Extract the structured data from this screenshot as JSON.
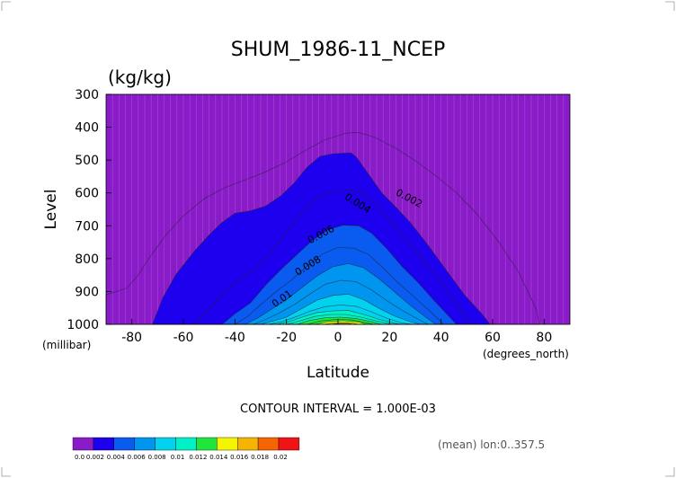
{
  "chart_data": {
    "type": "heatmap",
    "subtype": "filled-contour",
    "title": "SHUM_1986-11_NCEP",
    "units": "(kg/kg)",
    "ylabel": "Level",
    "yunit": "(millibar)",
    "xlabel": "Latitude",
    "xunit": "(degrees_north)",
    "xlim": [
      -90,
      90
    ],
    "ylim": [
      300,
      1000
    ],
    "y_reversed": true,
    "x_ticks": [
      -80,
      -60,
      -40,
      -20,
      0,
      20,
      40,
      60,
      80
    ],
    "y_ticks": [
      300,
      400,
      500,
      600,
      700,
      800,
      900,
      1000
    ],
    "contour_interval_text": "CONTOUR INTERVAL = 1.000E-03",
    "footer_note": "(mean) lon:0..357.5",
    "contour_labels": [
      {
        "text": "0.002",
        "lat": 27,
        "level": 625
      },
      {
        "text": "0.004",
        "lat": 7,
        "level": 640
      },
      {
        "text": "0.006",
        "lat": -6,
        "level": 735
      },
      {
        "text": "0.008",
        "lat": -11,
        "level": 830
      },
      {
        "text": "0.01",
        "lat": -21,
        "level": 930
      }
    ],
    "colorbar": {
      "labels": [
        "0.0",
        "0.002",
        "0.004",
        "0.006",
        "0.008",
        "0.01",
        "0.012",
        "0.014",
        "0.016",
        "0.018",
        "0.02"
      ],
      "colors": [
        "#8a1bc8",
        "#1c00ee",
        "#0a5bf0",
        "#0096f0",
        "#00d2f0",
        "#00f0c8",
        "#1ee63c",
        "#f5f500",
        "#f5b400",
        "#f56400",
        "#f01414"
      ]
    },
    "regions": [
      {
        "min": 0.001,
        "boundary": [
          [
            -90,
            910
          ],
          [
            -86,
            900
          ],
          [
            -82,
            890
          ],
          [
            -78,
            855
          ],
          [
            -73,
            795
          ],
          [
            -67,
            730
          ],
          [
            -60,
            670
          ],
          [
            -52,
            618
          ],
          [
            -44,
            584
          ],
          [
            -36,
            560
          ],
          [
            -28,
            536
          ],
          [
            -20,
            505
          ],
          [
            -12,
            468
          ],
          [
            -5,
            438
          ],
          [
            3,
            418
          ],
          [
            8,
            416
          ],
          [
            14,
            430
          ],
          [
            22,
            462
          ],
          [
            30,
            502
          ],
          [
            38,
            548
          ],
          [
            46,
            600
          ],
          [
            54,
            665
          ],
          [
            62,
            745
          ],
          [
            70,
            840
          ],
          [
            77,
            955
          ],
          [
            78,
            1000
          ]
        ]
      },
      {
        "min": 0.002,
        "boundary": [
          [
            -72,
            1000
          ],
          [
            -68,
            920
          ],
          [
            -63,
            850
          ],
          [
            -56,
            780
          ],
          [
            -50,
            728
          ],
          [
            -45,
            690
          ],
          [
            -40,
            662
          ],
          [
            -34,
            655
          ],
          [
            -28,
            640
          ],
          [
            -22,
            608
          ],
          [
            -17,
            570
          ],
          [
            -12,
            522
          ],
          [
            -7,
            489
          ],
          [
            -2,
            481
          ],
          [
            5,
            478
          ],
          [
            7,
            490
          ],
          [
            12,
            545
          ],
          [
            17,
            600
          ],
          [
            22,
            640
          ],
          [
            28,
            690
          ],
          [
            35,
            760
          ],
          [
            42,
            835
          ],
          [
            49,
            910
          ],
          [
            56,
            970
          ],
          [
            59,
            1000
          ]
        ]
      },
      {
        "min": 0.003,
        "boundary": [
          [
            -56,
            1000
          ],
          [
            -50,
            955
          ],
          [
            -44,
            900
          ],
          [
            -38,
            860
          ],
          [
            -32,
            830
          ],
          [
            -26,
            780
          ],
          [
            -20,
            718
          ],
          [
            -14,
            660
          ],
          [
            -8,
            612
          ],
          [
            -2,
            596
          ],
          [
            4,
            591
          ],
          [
            9,
            596
          ],
          [
            15,
            638
          ],
          [
            21,
            692
          ],
          [
            27,
            748
          ],
          [
            33,
            805
          ],
          [
            40,
            870
          ],
          [
            46,
            938
          ],
          [
            51,
            1000
          ]
        ]
      },
      {
        "min": 0.004,
        "boundary": [
          [
            -45,
            1000
          ],
          [
            -40,
            968
          ],
          [
            -34,
            935
          ],
          [
            -28,
            880
          ],
          [
            -22,
            832
          ],
          [
            -16,
            788
          ],
          [
            -10,
            745
          ],
          [
            -4,
            712
          ],
          [
            2,
            698
          ],
          [
            8,
            700
          ],
          [
            13,
            722
          ],
          [
            19,
            770
          ],
          [
            25,
            825
          ],
          [
            31,
            872
          ],
          [
            37,
            925
          ],
          [
            43,
            975
          ],
          [
            46,
            1000
          ]
        ]
      },
      {
        "min": 0.005,
        "boundary": [
          [
            -40,
            1000
          ],
          [
            -35,
            975
          ],
          [
            -30,
            940
          ],
          [
            -24,
            900
          ],
          [
            -18,
            865
          ],
          [
            -12,
            822
          ],
          [
            -6,
            786
          ],
          [
            0,
            766
          ],
          [
            6,
            768
          ],
          [
            12,
            788
          ],
          [
            18,
            832
          ],
          [
            24,
            878
          ],
          [
            30,
            920
          ],
          [
            36,
            962
          ],
          [
            41,
            1000
          ]
        ]
      },
      {
        "min": 0.006,
        "boundary": [
          [
            -36,
            1000
          ],
          [
            -31,
            980
          ],
          [
            -26,
            955
          ],
          [
            -20,
            925
          ],
          [
            -14,
            888
          ],
          [
            -8,
            852
          ],
          [
            -2,
            825
          ],
          [
            4,
            815
          ],
          [
            10,
            828
          ],
          [
            16,
            862
          ],
          [
            22,
            902
          ],
          [
            28,
            942
          ],
          [
            34,
            978
          ],
          [
            38,
            1000
          ]
        ]
      },
      {
        "min": 0.007,
        "boundary": [
          [
            -33,
            1000
          ],
          [
            -28,
            985
          ],
          [
            -23,
            966
          ],
          [
            -17,
            940
          ],
          [
            -11,
            908
          ],
          [
            -5,
            878
          ],
          [
            1,
            866
          ],
          [
            7,
            870
          ],
          [
            13,
            895
          ],
          [
            19,
            928
          ],
          [
            25,
            958
          ],
          [
            31,
            984
          ],
          [
            35,
            1000
          ]
        ]
      },
      {
        "min": 0.008,
        "boundary": [
          [
            -30,
            1000
          ],
          [
            -25,
            990
          ],
          [
            -20,
            978
          ],
          [
            -14,
            952
          ],
          [
            -8,
            926
          ],
          [
            -2,
            912
          ],
          [
            4,
            908
          ],
          [
            10,
            925
          ],
          [
            16,
            952
          ],
          [
            22,
            975
          ],
          [
            28,
            992
          ],
          [
            32,
            1000
          ]
        ]
      },
      {
        "min": 0.009,
        "boundary": [
          [
            -27,
            1000
          ],
          [
            -22,
            992
          ],
          [
            -17,
            979
          ],
          [
            -11,
            960
          ],
          [
            -5,
            946
          ],
          [
            1,
            941
          ],
          [
            7,
            945
          ],
          [
            13,
            962
          ],
          [
            19,
            982
          ],
          [
            25,
            996
          ],
          [
            29,
            1000
          ]
        ]
      },
      {
        "min": 0.01,
        "boundary": [
          [
            -24,
            1000
          ],
          [
            -19,
            992
          ],
          [
            -14,
            978
          ],
          [
            -8,
            964
          ],
          [
            -2,
            959
          ],
          [
            4,
            958
          ],
          [
            10,
            970
          ],
          [
            16,
            985
          ],
          [
            22,
            997
          ],
          [
            25,
            1000
          ]
        ]
      },
      {
        "min": 0.011,
        "boundary": [
          [
            -20,
            1000
          ],
          [
            -15,
            990
          ],
          [
            -9,
            976
          ],
          [
            -3,
            970
          ],
          [
            3,
            970
          ],
          [
            9,
            978
          ],
          [
            15,
            990
          ],
          [
            21,
            1000
          ]
        ]
      },
      {
        "min": 0.012,
        "boundary": [
          [
            -16,
            1000
          ],
          [
            -11,
            988
          ],
          [
            -5,
            980
          ],
          [
            1,
            978
          ],
          [
            7,
            982
          ],
          [
            13,
            992
          ],
          [
            17,
            1000
          ]
        ]
      },
      {
        "min": 0.013,
        "boundary": [
          [
            -12,
            1000
          ],
          [
            -7,
            990
          ],
          [
            -1,
            985
          ],
          [
            5,
            986
          ],
          [
            11,
            995
          ],
          [
            14,
            1000
          ]
        ]
      },
      {
        "min": 0.014,
        "boundary": [
          [
            -9,
            1000
          ],
          [
            -4,
            992
          ],
          [
            2,
            989
          ],
          [
            8,
            993
          ],
          [
            11,
            1000
          ]
        ]
      },
      {
        "min": 0.015,
        "boundary": [
          [
            -6,
            1000
          ],
          [
            -1,
            995
          ],
          [
            5,
            995
          ],
          [
            8,
            1000
          ]
        ]
      },
      {
        "min": 0.016,
        "boundary": [
          [
            -3,
            1000
          ],
          [
            0,
            997
          ],
          [
            4,
            997
          ],
          [
            6,
            1000
          ]
        ]
      }
    ]
  }
}
